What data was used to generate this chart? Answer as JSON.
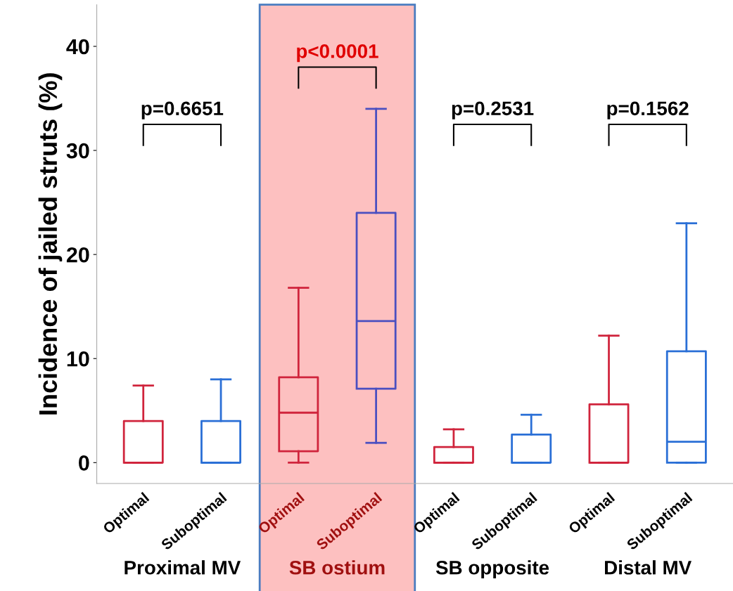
{
  "chart_data": {
    "type": "box",
    "ylabel": "Incidence of jailed struts (%)",
    "categories": [
      "Optimal",
      "Suboptimal",
      "Optimal",
      "Suboptimal",
      "Optimal",
      "Suboptimal",
      "Optimal",
      "Suboptimal"
    ],
    "boxes": [
      {
        "low": 0,
        "q1": 0,
        "median": 0,
        "q3": 4.0,
        "high": 7.4
      },
      {
        "low": 0,
        "q1": 0,
        "median": 0,
        "q3": 4.0,
        "high": 8.0
      },
      {
        "low": 0,
        "q1": 1.1,
        "median": 4.8,
        "q3": 8.2,
        "high": 16.8
      },
      {
        "low": 1.9,
        "q1": 7.1,
        "median": 13.6,
        "q3": 24.0,
        "high": 34.0
      },
      {
        "low": 0,
        "q1": 0,
        "median": 0,
        "q3": 1.5,
        "high": 3.2
      },
      {
        "low": 0,
        "q1": 0,
        "median": 0,
        "q3": 2.7,
        "high": 4.6
      },
      {
        "low": 0,
        "q1": 0,
        "median": 0,
        "q3": 5.6,
        "high": 12.2
      },
      {
        "low": 0,
        "q1": 0,
        "median": 2.0,
        "q3": 10.7,
        "high": 23.0
      }
    ],
    "colors": [
      "#d0243c",
      "#2a6fd6",
      "#d0243c",
      "#4a4fc0",
      "#d0243c",
      "#2a6fd6",
      "#d0243c",
      "#2a6fd6"
    ],
    "ylim": [
      -2,
      44
    ],
    "yticks": [
      0,
      10,
      20,
      30,
      40
    ],
    "grid": false,
    "annotations": [
      "p=0.6651",
      "p<0.0001",
      "p=0.2531",
      "p=0.1562",
      "Proximal MV",
      "SB ostium",
      "SB opposite",
      "Distal MV"
    ]
  }
}
